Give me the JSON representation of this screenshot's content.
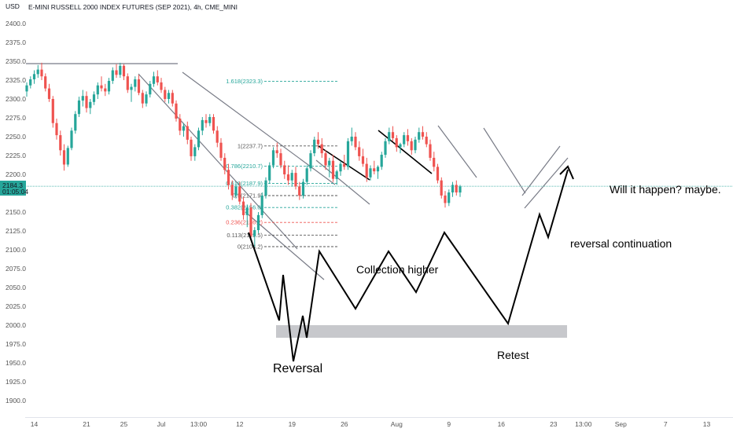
{
  "header": {
    "currency": "USD",
    "title": "E-MINI RUSSELL 2000 INDEX FUTURES (SEP 2021), 4h, CME_MINI"
  },
  "colors": {
    "up": "#26a69a",
    "down": "#ef5350",
    "fib_green": "#26a69a",
    "fib_red": "#ef5350",
    "fib_gray": "#555555",
    "price_line": "#26a69a",
    "badge_bg": "#26a69a",
    "retest_zone": "#c7c8cc"
  },
  "chart_data": {
    "type": "candlestick",
    "symbol": "RTY",
    "timeframe": "4h",
    "ylim": [
      1887,
      2415
    ],
    "y_ticks": [
      2400,
      2375,
      2350,
      2325,
      2300,
      2275,
      2250,
      2225,
      2200,
      2175,
      2150,
      2125,
      2100,
      2075,
      2050,
      2025,
      2000,
      1975,
      1950,
      1925,
      1900
    ],
    "y_tick_labels": [
      "2400.0",
      "2375.0",
      "2350.0",
      "2325.0",
      "2300.0",
      "2275.0",
      "2250.0",
      "2225.0",
      "2200.0",
      "2175.0",
      "2150.0",
      "2125.0",
      "2100.0",
      "2075.0",
      "2050.0",
      "2025.0",
      "2000.0",
      "1975.0",
      "1950.0",
      "1925.0",
      "1900.0"
    ],
    "x_ticks": [
      {
        "label": "14",
        "bar": 2
      },
      {
        "label": "21",
        "bar": 16
      },
      {
        "label": "25",
        "bar": 26
      },
      {
        "label": "Jul",
        "bar": 36
      },
      {
        "label": "13:00",
        "bar": 46
      },
      {
        "label": "12",
        "bar": 57
      },
      {
        "label": "19",
        "bar": 71
      },
      {
        "label": "26",
        "bar": 85
      },
      {
        "label": "Aug",
        "bar": 99
      },
      {
        "label": "9",
        "bar": 113
      },
      {
        "label": "16",
        "bar": 127
      },
      {
        "label": "23",
        "bar": 141
      },
      {
        "label": "13:00",
        "bar": 149
      },
      {
        "label": "Sep",
        "bar": 159
      },
      {
        "label": "7",
        "bar": 171
      },
      {
        "label": "13",
        "bar": 182
      }
    ],
    "current_price": {
      "value": 2184.3,
      "label": "2184.3",
      "countdown": "01:05:04"
    },
    "candles": [
      [
        2310,
        2322,
        2303,
        2318
      ],
      [
        2318,
        2330,
        2314,
        2326
      ],
      [
        2326,
        2338,
        2320,
        2333
      ],
      [
        2333,
        2345,
        2328,
        2339
      ],
      [
        2339,
        2348,
        2325,
        2330
      ],
      [
        2330,
        2334,
        2310,
        2314
      ],
      [
        2314,
        2320,
        2296,
        2300
      ],
      [
        2300,
        2304,
        2262,
        2268
      ],
      [
        2268,
        2274,
        2246,
        2252
      ],
      [
        2252,
        2258,
        2225,
        2232
      ],
      [
        2232,
        2240,
        2205,
        2213
      ],
      [
        2213,
        2238,
        2210,
        2235
      ],
      [
        2235,
        2262,
        2232,
        2258
      ],
      [
        2258,
        2284,
        2254,
        2280
      ],
      [
        2280,
        2303,
        2276,
        2298
      ],
      [
        2298,
        2312,
        2290,
        2304
      ],
      [
        2304,
        2310,
        2282,
        2288
      ],
      [
        2288,
        2300,
        2280,
        2296
      ],
      [
        2296,
        2310,
        2292,
        2306
      ],
      [
        2306,
        2322,
        2300,
        2318
      ],
      [
        2318,
        2330,
        2310,
        2314
      ],
      [
        2314,
        2320,
        2304,
        2310
      ],
      [
        2310,
        2328,
        2306,
        2324
      ],
      [
        2324,
        2342,
        2320,
        2338
      ],
      [
        2338,
        2346,
        2328,
        2332
      ],
      [
        2332,
        2348,
        2328,
        2344
      ],
      [
        2344,
        2346,
        2325,
        2330
      ],
      [
        2330,
        2334,
        2308,
        2312
      ],
      [
        2312,
        2320,
        2296,
        2316
      ],
      [
        2316,
        2330,
        2310,
        2326
      ],
      [
        2326,
        2332,
        2305,
        2308
      ],
      [
        2308,
        2312,
        2288,
        2294
      ],
      [
        2294,
        2310,
        2290,
        2306
      ],
      [
        2306,
        2324,
        2302,
        2320
      ],
      [
        2320,
        2336,
        2316,
        2330
      ],
      [
        2330,
        2338,
        2318,
        2322
      ],
      [
        2322,
        2328,
        2308,
        2312
      ],
      [
        2312,
        2316,
        2296,
        2300
      ],
      [
        2300,
        2312,
        2294,
        2308
      ],
      [
        2308,
        2312,
        2290,
        2294
      ],
      [
        2294,
        2298,
        2270,
        2274
      ],
      [
        2274,
        2280,
        2252,
        2258
      ],
      [
        2258,
        2268,
        2250,
        2264
      ],
      [
        2264,
        2270,
        2240,
        2246
      ],
      [
        2246,
        2250,
        2218,
        2224
      ],
      [
        2224,
        2240,
        2218,
        2236
      ],
      [
        2236,
        2262,
        2232,
        2258
      ],
      [
        2258,
        2276,
        2252,
        2272
      ],
      [
        2272,
        2280,
        2262,
        2268
      ],
      [
        2268,
        2280,
        2264,
        2276
      ],
      [
        2276,
        2280,
        2254,
        2258
      ],
      [
        2258,
        2264,
        2236,
        2242
      ],
      [
        2242,
        2248,
        2218,
        2222
      ],
      [
        2222,
        2228,
        2200,
        2206
      ],
      [
        2206,
        2214,
        2180,
        2186
      ],
      [
        2186,
        2192,
        2166,
        2172
      ],
      [
        2172,
        2188,
        2168,
        2184
      ],
      [
        2184,
        2190,
        2160,
        2164
      ],
      [
        2164,
        2170,
        2140,
        2146
      ],
      [
        2146,
        2160,
        2130,
        2156
      ],
      [
        2156,
        2162,
        2112,
        2118
      ],
      [
        2118,
        2130,
        2104,
        2126
      ],
      [
        2126,
        2150,
        2122,
        2146
      ],
      [
        2146,
        2176,
        2142,
        2172
      ],
      [
        2172,
        2196,
        2168,
        2192
      ],
      [
        2192,
        2216,
        2188,
        2212
      ],
      [
        2212,
        2236,
        2208,
        2232
      ],
      [
        2232,
        2242,
        2222,
        2228
      ],
      [
        2228,
        2234,
        2208,
        2212
      ],
      [
        2212,
        2218,
        2194,
        2200
      ],
      [
        2200,
        2212,
        2186,
        2192
      ],
      [
        2192,
        2206,
        2184,
        2202
      ],
      [
        2202,
        2210,
        2180,
        2184
      ],
      [
        2184,
        2190,
        2166,
        2172
      ],
      [
        2172,
        2194,
        2168,
        2190
      ],
      [
        2190,
        2212,
        2186,
        2208
      ],
      [
        2208,
        2232,
        2204,
        2228
      ],
      [
        2228,
        2250,
        2224,
        2246
      ],
      [
        2246,
        2256,
        2234,
        2240
      ],
      [
        2240,
        2248,
        2222,
        2228
      ],
      [
        2228,
        2232,
        2206,
        2212
      ],
      [
        2212,
        2222,
        2196,
        2218
      ],
      [
        2218,
        2226,
        2190,
        2194
      ],
      [
        2194,
        2206,
        2186,
        2204
      ],
      [
        2204,
        2218,
        2198,
        2214
      ],
      [
        2214,
        2226,
        2206,
        2210
      ],
      [
        2210,
        2248,
        2206,
        2244
      ],
      [
        2244,
        2262,
        2238,
        2250
      ],
      [
        2250,
        2256,
        2232,
        2236
      ],
      [
        2236,
        2244,
        2218,
        2224
      ],
      [
        2224,
        2234,
        2210,
        2214
      ],
      [
        2214,
        2222,
        2190,
        2196
      ],
      [
        2196,
        2212,
        2192,
        2208
      ],
      [
        2208,
        2218,
        2200,
        2204
      ],
      [
        2204,
        2212,
        2194,
        2210
      ],
      [
        2210,
        2230,
        2206,
        2226
      ],
      [
        2226,
        2248,
        2222,
        2244
      ],
      [
        2244,
        2262,
        2240,
        2256
      ],
      [
        2256,
        2264,
        2244,
        2248
      ],
      [
        2248,
        2252,
        2230,
        2236
      ],
      [
        2236,
        2242,
        2228,
        2240
      ],
      [
        2240,
        2256,
        2236,
        2252
      ],
      [
        2252,
        2260,
        2238,
        2244
      ],
      [
        2244,
        2248,
        2226,
        2232
      ],
      [
        2232,
        2250,
        2228,
        2246
      ],
      [
        2246,
        2262,
        2242,
        2256
      ],
      [
        2256,
        2264,
        2246,
        2250
      ],
      [
        2250,
        2256,
        2236,
        2240
      ],
      [
        2240,
        2246,
        2218,
        2222
      ],
      [
        2222,
        2230,
        2204,
        2210
      ],
      [
        2210,
        2214,
        2188,
        2192
      ],
      [
        2192,
        2196,
        2168,
        2172
      ],
      [
        2172,
        2178,
        2156,
        2162
      ],
      [
        2162,
        2180,
        2158,
        2176
      ],
      [
        2176,
        2190,
        2170,
        2186
      ],
      [
        2186,
        2192,
        2172,
        2176
      ],
      [
        2176,
        2186,
        2170,
        2184
      ]
    ],
    "bar_x": {
      "first_bar_x": 34,
      "spacing": 4.75
    },
    "fibonacci": [
      {
        "level": "1.618(2323.3)",
        "price": 2323.3,
        "color": "fib_green"
      },
      {
        "level": "1(2237.7)",
        "price": 2237.7,
        "color": "fib_gray"
      },
      {
        "level": "0.786(2210.7)",
        "price": 2210.7,
        "color": "fib_green"
      },
      {
        "level": "0.618(2187.9)",
        "price": 2187.9,
        "color": "fib_green"
      },
      {
        "level": "0.5(2171.9)",
        "price": 2171.9,
        "color": "fib_gray"
      },
      {
        "level": "0.382(2156.0)",
        "price": 2156.0,
        "color": "fib_green"
      },
      {
        "level": "0.236(2136.2)",
        "price": 2136.2,
        "color": "fib_red"
      },
      {
        "level": "0.113(2119.5)",
        "price": 2119.5,
        "color": "fib_gray"
      },
      {
        "level": "0(2104.2)",
        "price": 2104.2,
        "color": "fib_gray"
      }
    ],
    "annotations": {
      "reversal": "Reversal",
      "collection_higher": "Collection higher",
      "retest": "Retest",
      "reversal_continuation": "reversal continuation",
      "question": "Will it happen? maybe."
    }
  }
}
